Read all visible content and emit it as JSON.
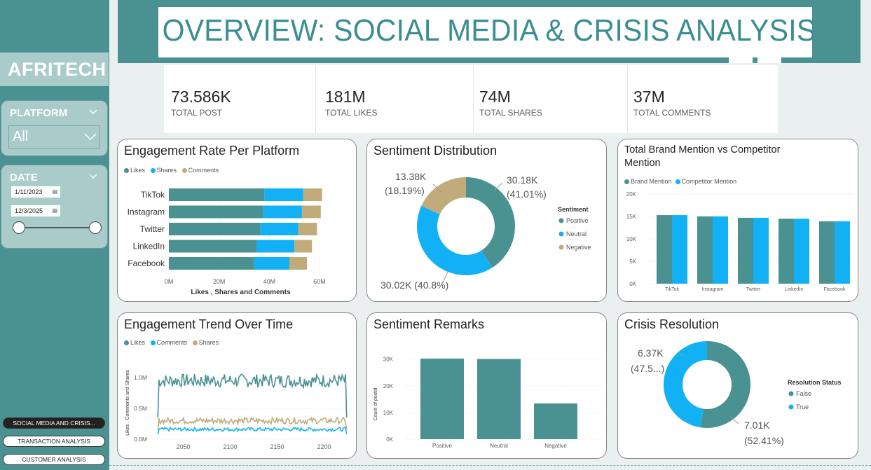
{
  "brand": "AFRITECH",
  "title": "OVERVIEW: SOCIAL MEDIA & CRISIS ANALYSIS",
  "filters": {
    "platform_label": "PLATFORM",
    "platform_value": "All",
    "date_label": "DATE",
    "date_start": "1/11/2023",
    "date_end": "12/3/2025"
  },
  "nav": [
    {
      "label": "SOCIAL MEDIA AND CRISIS...",
      "active": true
    },
    {
      "label": "TRANSACTION ANALYSIS",
      "active": false
    },
    {
      "label": "CUSTOMER ANALYSIS",
      "active": false
    }
  ],
  "kpis": [
    {
      "value": "73.586K",
      "caption": "TOTAL POST"
    },
    {
      "value": "181M",
      "caption": "TOTAL LIKES"
    },
    {
      "value": "74M",
      "caption": "TOTAL SHARES"
    },
    {
      "value": "37M",
      "caption": "TOTAL COMMENTS"
    }
  ],
  "colors": {
    "teal": "#4a9192",
    "blue": "#12b0f5",
    "tan": "#c2ab7a"
  },
  "chart_data": [
    {
      "id": "engagement_rate",
      "type": "bar",
      "orientation": "horizontal-stacked",
      "title": "Engagement Rate Per Platform",
      "categories": [
        "TikTok",
        "Instagram",
        "Twitter",
        "LinkedIn",
        "Facebook"
      ],
      "series": [
        {
          "name": "Likes",
          "values": [
            38,
            37.5,
            36.5,
            35,
            34
          ]
        },
        {
          "name": "Shares",
          "values": [
            15.5,
            15.5,
            15,
            15,
            14
          ]
        },
        {
          "name": "Comments",
          "values": [
            7.5,
            7.5,
            7.5,
            7,
            7
          ]
        }
      ],
      "xticks": [
        "0M",
        "20M",
        "40M",
        "60M"
      ],
      "xlim": [
        0,
        60
      ],
      "xlabel": "Likes , Shares and Comments"
    },
    {
      "id": "sentiment_distribution",
      "type": "pie",
      "title": "Sentiment Distribution",
      "legend_title": "Sentiment",
      "labels": [
        "Positive",
        "Neutral",
        "Negative"
      ],
      "values": [
        30.18,
        30.02,
        13.38
      ],
      "data_labels": [
        {
          "line1": "30.18K",
          "line2": "(41.01%)"
        },
        {
          "line1": "30.02K (40.8%)",
          "line2": ""
        },
        {
          "line1": "13.38K",
          "line2": "(18.19%)"
        }
      ]
    },
    {
      "id": "brand_vs_competitor",
      "type": "bar",
      "title_line1": "Total Brand Mention vs Competitor",
      "title_line2": "Mention",
      "categories": [
        "TikTok",
        "Instagram",
        "Twitter",
        "LinkedIn",
        "Facebook"
      ],
      "series": [
        {
          "name": "Brand Mention",
          "values": [
            15300,
            15000,
            14700,
            14500,
            13900
          ]
        },
        {
          "name": "Competitor Mention",
          "values": [
            15300,
            15000,
            14700,
            14500,
            13900
          ]
        }
      ],
      "yticks": [
        "0K",
        "5K",
        "10K",
        "15K",
        "20K"
      ],
      "ylim": [
        0,
        20000
      ]
    },
    {
      "id": "engagement_trend",
      "type": "line",
      "title": "Engagement Trend Over Time",
      "series_names": [
        "Likes",
        "Comments",
        "Shares"
      ],
      "series_levels": [
        0.95,
        0.16,
        0.3
      ],
      "xticks": [
        "2050",
        "2100",
        "2150",
        "2200"
      ],
      "x_range": [
        2022,
        2225
      ],
      "yticks": [
        "0.0M",
        "0.5M",
        "1.0M"
      ],
      "ylim": [
        0,
        1.25
      ],
      "ylabel": "Likes , Comments and Shares"
    },
    {
      "id": "sentiment_remarks",
      "type": "bar",
      "title": "Sentiment Remarks",
      "categories": [
        "Positive",
        "Neutral",
        "Negative"
      ],
      "values": [
        30180,
        30020,
        13380
      ],
      "yticks": [
        "0K",
        "10K",
        "20K",
        "30K"
      ],
      "ylim": [
        0,
        32000
      ],
      "ylabel": "Count of postid"
    },
    {
      "id": "crisis_resolution",
      "type": "pie",
      "title": "Crisis Resolution",
      "legend_title": "Resolution Status",
      "labels": [
        "False",
        "True"
      ],
      "values": [
        7.01,
        6.37
      ],
      "data_labels": [
        {
          "line1": "7.01K",
          "line2": "(52.41%)"
        },
        {
          "line1": "6.37K",
          "line2": "(47.5...)"
        }
      ]
    }
  ]
}
